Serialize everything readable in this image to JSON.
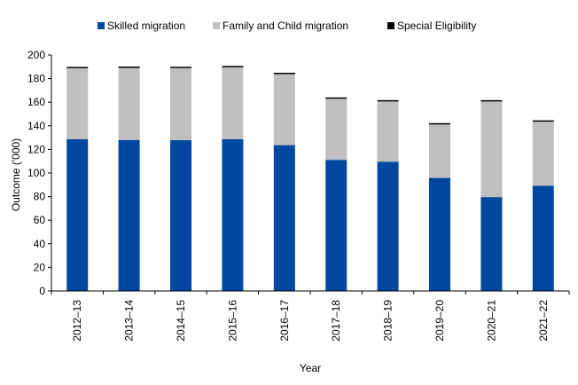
{
  "chart_data": {
    "type": "bar",
    "stacked": true,
    "categories": [
      "2012–13",
      "2013–14",
      "2014–15",
      "2015–16",
      "2016–17",
      "2017–18",
      "2018–19",
      "2019–20",
      "2020–21",
      "2021–22"
    ],
    "series": [
      {
        "name": "Skilled migration",
        "color": "#0047a0",
        "values": [
          128.6,
          128.0,
          127.8,
          128.6,
          123.6,
          111.1,
          109.6,
          95.8,
          79.6,
          89.2
        ]
      },
      {
        "name": "Family and Child migration",
        "color": "#c0c0c0",
        "values": [
          60.2,
          61.1,
          61.1,
          61.0,
          60.2,
          51.8,
          51.0,
          45.3,
          81.0,
          54.3
        ]
      },
      {
        "name": "Special Eligibility",
        "color": "#000000",
        "values": [
          0.8,
          0.9,
          0.6,
          0.7,
          1.0,
          0.9,
          0.6,
          0.3,
          0.2,
          0.7
        ]
      }
    ],
    "xlabel": "Year",
    "ylabel": "Outcome ('000)",
    "ylim": [
      0,
      200
    ],
    "yticks": [
      0,
      20,
      40,
      60,
      80,
      100,
      120,
      140,
      160,
      180,
      200
    ],
    "legend_position": "top"
  }
}
